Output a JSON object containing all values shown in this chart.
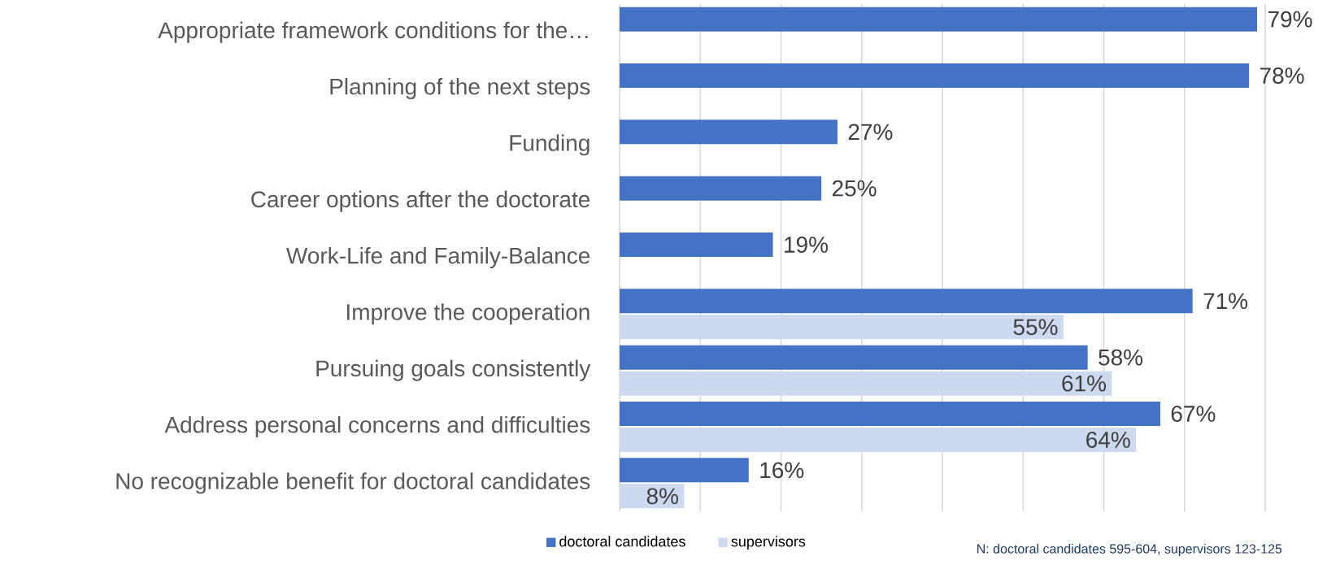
{
  "chart_data": {
    "type": "bar",
    "orientation": "horizontal",
    "categories": [
      "Appropriate framework conditions for the…",
      "Planning of the next steps",
      "Funding",
      "Career options after the doctorate",
      "Work-Life and Family-Balance",
      "Improve the cooperation",
      "Pursuing goals consistently",
      "Address personal concerns and difficulties",
      "No recognizable benefit for doctoral candidates"
    ],
    "series": [
      {
        "name": "doctoral candidates",
        "color": "#4472c4",
        "values": [
          79,
          78,
          27,
          25,
          19,
          71,
          58,
          67,
          16
        ],
        "value_labels": [
          "79%",
          "78%",
          "27%",
          "25%",
          "19%",
          "71%",
          "58%",
          "67%",
          "16%"
        ]
      },
      {
        "name": "supervisors",
        "color": "#cdd9ef",
        "values": [
          null,
          null,
          null,
          null,
          null,
          55,
          61,
          64,
          8
        ],
        "value_labels": [
          null,
          null,
          null,
          null,
          null,
          "55%",
          "61%",
          "64%",
          "8%"
        ]
      }
    ],
    "xlim": [
      0,
      80
    ],
    "xticks": [
      {
        "value": 0,
        "label": null
      },
      {
        "value": 10,
        "label": null
      },
      {
        "value": 20,
        "label": null
      },
      {
        "value": 30,
        "label": null
      },
      {
        "value": 40,
        "label": null
      },
      {
        "value": 50,
        "label": null
      },
      {
        "value": 60,
        "label": null
      },
      {
        "value": 70,
        "label": null
      },
      {
        "value": 80,
        "label": null
      }
    ],
    "tick_labels": "y",
    "grid": "x",
    "legend": "bottom",
    "annotations": [
      "N: doctoral candidates 595-604, supervisors 123-125"
    ]
  }
}
